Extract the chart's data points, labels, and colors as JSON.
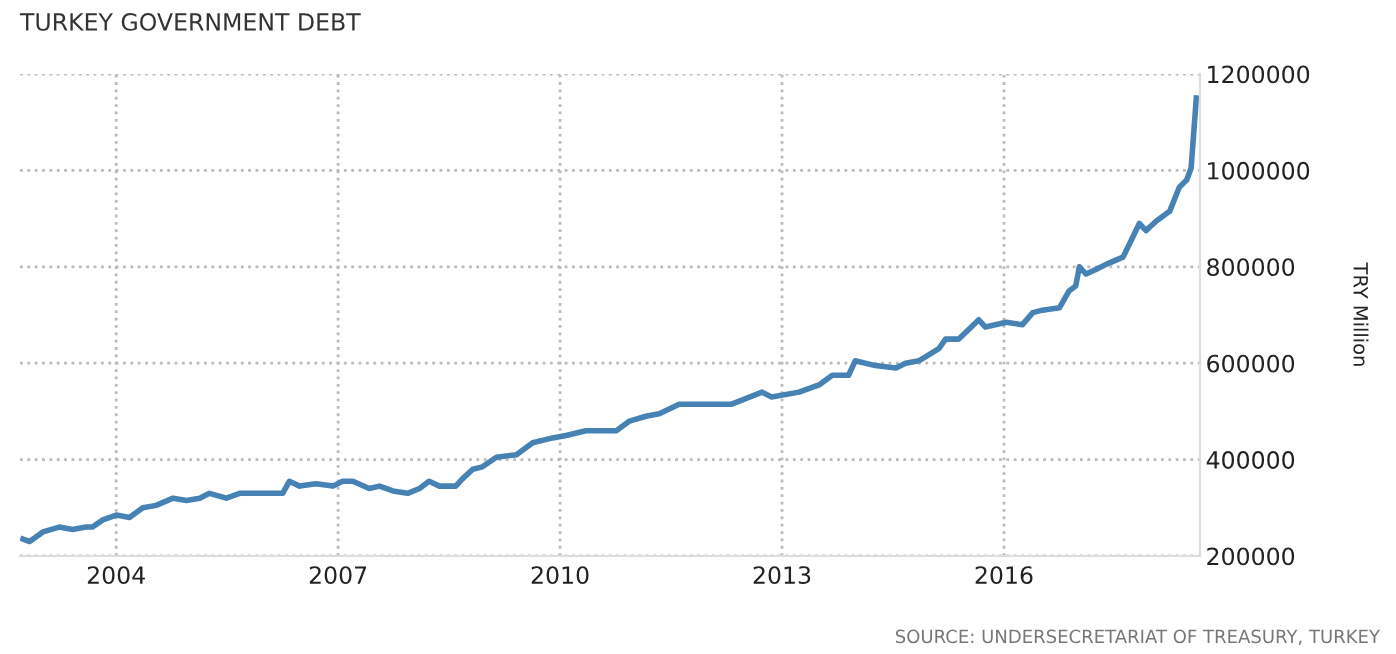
{
  "chart_data": {
    "type": "line",
    "title": "TURKEY GOVERNMENT DEBT",
    "ylabel": "TRY Million",
    "annotations": [
      "SOURCE: UNDERSECRETARIAT OF TREASURY, TURKEY"
    ],
    "x": [
      2002.74,
      2002.83,
      2003.01,
      2003.23,
      2003.41,
      2003.59,
      2003.68,
      2003.82,
      2004.0,
      2004.18,
      2004.36,
      2004.54,
      2004.77,
      2004.95,
      2005.13,
      2005.26,
      2005.49,
      2005.67,
      2005.94,
      2006.25,
      2006.34,
      2006.48,
      2006.7,
      2006.93,
      2007.06,
      2007.2,
      2007.42,
      2007.56,
      2007.74,
      2007.94,
      2008.1,
      2008.23,
      2008.37,
      2008.59,
      2008.68,
      2008.82,
      2008.95,
      2009.14,
      2009.41,
      2009.63,
      2009.9,
      2010.08,
      2010.35,
      2010.58,
      2010.76,
      2010.94,
      2011.16,
      2011.34,
      2011.61,
      2011.96,
      2012.32,
      2012.73,
      2012.86,
      2013.23,
      2013.5,
      2013.68,
      2013.9,
      2013.99,
      2014.26,
      2014.54,
      2014.67,
      2014.85,
      2015.12,
      2015.21,
      2015.39,
      2015.66,
      2015.75,
      2016.03,
      2016.25,
      2016.39,
      2016.52,
      2016.75,
      2016.88,
      2016.97,
      2017.02,
      2017.11,
      2017.25,
      2017.38,
      2017.61,
      2017.83,
      2017.92,
      2018.06,
      2018.24,
      2018.37,
      2018.47,
      2018.53,
      2018.6
    ],
    "series": [
      {
        "color": "#4682b4",
        "values": [
          235000,
          230000,
          250000,
          260000,
          255000,
          260000,
          260000,
          275000,
          285000,
          280000,
          300000,
          305000,
          320000,
          315000,
          320000,
          330000,
          320000,
          330000,
          330000,
          330000,
          355000,
          345000,
          350000,
          345000,
          355000,
          355000,
          340000,
          345000,
          335000,
          330000,
          340000,
          355000,
          345000,
          345000,
          360000,
          380000,
          385000,
          405000,
          410000,
          435000,
          445000,
          450000,
          460000,
          460000,
          460000,
          480000,
          490000,
          495000,
          515000,
          515000,
          515000,
          540000,
          530000,
          540000,
          555000,
          575000,
          575000,
          605000,
          595000,
          590000,
          600000,
          605000,
          630000,
          650000,
          650000,
          690000,
          675000,
          685000,
          680000,
          705000,
          710000,
          715000,
          750000,
          760000,
          800000,
          785000,
          795000,
          805000,
          820000,
          890000,
          875000,
          895000,
          915000,
          965000,
          980000,
          1005000,
          1150000
        ]
      }
    ],
    "xlim": [
      2002.7,
      2018.65
    ],
    "xticks": [
      2004,
      2007,
      2010,
      2013,
      2016
    ],
    "ylim": [
      200000,
      1200000
    ],
    "yticks": [
      200000,
      400000,
      600000,
      800000,
      1000000,
      1200000
    ],
    "grid": true,
    "marker": "none",
    "line_style": "solid"
  }
}
